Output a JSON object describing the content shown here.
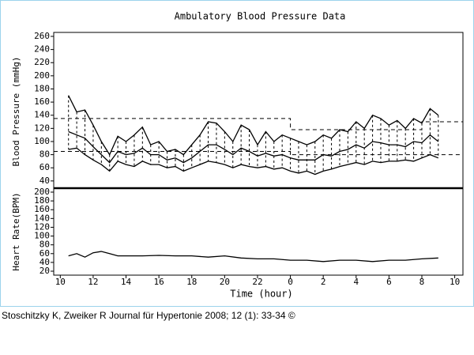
{
  "chart_data": [
    {
      "type": "line",
      "title": "Ambulatory Blood Pressure Data",
      "y_label": "Blood Pressure (mmHg)",
      "xlim": [
        9.6,
        34.5
      ],
      "ylim": [
        29,
        266
      ],
      "yticks": [
        40,
        60,
        80,
        100,
        120,
        140,
        160,
        180,
        200,
        220,
        240,
        260
      ],
      "range_bars": true,
      "x": [
        10.5,
        11,
        11.5,
        12,
        12.5,
        13,
        13.5,
        14,
        14.5,
        15,
        15.5,
        16,
        16.5,
        17,
        17.5,
        18,
        18.5,
        19,
        19.5,
        20,
        20.5,
        21,
        21.5,
        22,
        22.5,
        23,
        23.5,
        24,
        24.5,
        25,
        25.5,
        26,
        26.5,
        27,
        27.5,
        28,
        28.5,
        29,
        29.5,
        30,
        30.5,
        31,
        31.5,
        32,
        32.5,
        33
      ],
      "series": [
        {
          "color": "#000000",
          "values": [
            170,
            145,
            148,
            125,
            100,
            80,
            108,
            100,
            110,
            122,
            95,
            100,
            85,
            88,
            80,
            95,
            110,
            130,
            128,
            115,
            100,
            125,
            118,
            95,
            115,
            100,
            110,
            105,
            100,
            95,
            100,
            110,
            105,
            118,
            115,
            130,
            120,
            140,
            135,
            125,
            132,
            120,
            135,
            128,
            150,
            140
          ]
        },
        {
          "color": "#000000",
          "values": [
            115,
            110,
            105,
            92,
            80,
            68,
            85,
            80,
            82,
            90,
            80,
            80,
            72,
            75,
            68,
            75,
            85,
            95,
            95,
            88,
            80,
            90,
            85,
            78,
            82,
            78,
            80,
            75,
            72,
            72,
            72,
            80,
            78,
            85,
            88,
            95,
            90,
            100,
            98,
            95,
            95,
            92,
            100,
            98,
            110,
            100
          ]
        },
        {
          "color": "#000000",
          "values": [
            88,
            90,
            80,
            72,
            65,
            55,
            70,
            65,
            62,
            70,
            65,
            65,
            60,
            62,
            55,
            60,
            65,
            70,
            68,
            65,
            60,
            65,
            62,
            60,
            62,
            58,
            60,
            55,
            52,
            55,
            50,
            55,
            58,
            62,
            65,
            68,
            65,
            70,
            68,
            70,
            70,
            72,
            70,
            75,
            80,
            75
          ]
        }
      ],
      "limits": [
        {
          "color": "#000000",
          "x": [
            9.6,
            24,
            24,
            32,
            32,
            34.5
          ],
          "values": [
            135,
            135,
            118,
            118,
            130,
            130
          ]
        },
        {
          "color": "#000000",
          "x": [
            9.6,
            24,
            24,
            34.5
          ],
          "values": [
            85,
            85,
            80,
            80
          ]
        }
      ]
    },
    {
      "type": "line",
      "x_label": "Time (hour)",
      "y_label": "Heart Rate(BPM)",
      "xlim": [
        9.6,
        34.5
      ],
      "ylim": [
        11,
        209
      ],
      "xticks": [
        10,
        12,
        14,
        16,
        18,
        20,
        22,
        {
          "value": 24,
          "label": "0"
        },
        {
          "value": 26,
          "label": "2"
        },
        {
          "value": 28,
          "label": "4"
        },
        {
          "value": 30,
          "label": "6"
        },
        {
          "value": 32,
          "label": "8"
        },
        {
          "value": 34,
          "label": "10"
        }
      ],
      "yticks": [
        20,
        40,
        60,
        80,
        100,
        120,
        140,
        160,
        180,
        200
      ],
      "x": [
        10.5,
        11,
        11.5,
        12,
        12.5,
        13,
        13.5,
        14,
        15,
        16,
        17,
        18,
        19,
        20,
        21,
        22,
        23,
        24,
        25,
        26,
        27,
        28,
        29,
        30,
        31,
        32,
        33
      ],
      "series": [
        {
          "color": "#000000",
          "values": [
            55,
            60,
            52,
            62,
            65,
            60,
            55,
            55,
            55,
            56,
            55,
            55,
            52,
            55,
            50,
            48,
            48,
            45,
            45,
            42,
            45,
            45,
            42,
            45,
            45,
            48,
            50
          ]
        }
      ]
    }
  ],
  "caption": "Stoschitzky K, Zweiker R Journal für Hypertonie 2008; 12 (1): 33-34 ©"
}
